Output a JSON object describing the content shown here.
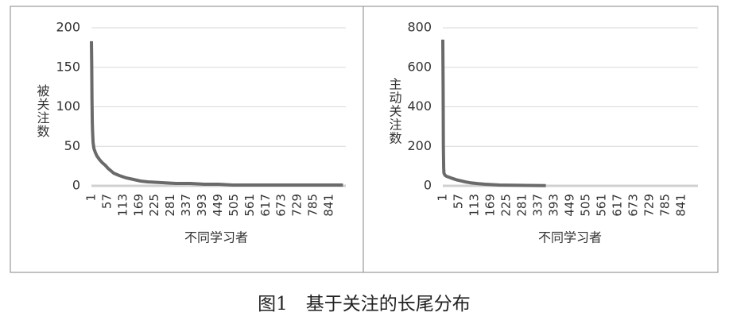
{
  "chart_data": [
    {
      "type": "line",
      "y_label": "被关注数",
      "x_label": "不同学习者",
      "color": "#6a6a6a",
      "grid": true,
      "x": [
        1,
        2,
        3,
        4,
        5,
        7,
        10,
        15,
        20,
        30,
        40,
        50,
        60,
        80,
        100,
        125,
        150,
        175,
        200,
        250,
        300,
        350,
        400,
        450,
        500,
        600,
        700,
        800,
        890
      ],
      "values": [
        183,
        150,
        110,
        80,
        70,
        55,
        47,
        42,
        38,
        33,
        29,
        26,
        22,
        16,
        13,
        10,
        8,
        6,
        5,
        4,
        3,
        3,
        2,
        2,
        1,
        1,
        1,
        1,
        1
      ],
      "xlim": [
        1,
        900
      ],
      "xticks": [
        1,
        57,
        113,
        169,
        225,
        281,
        337,
        393,
        449,
        505,
        561,
        617,
        673,
        729,
        785,
        841
      ],
      "ylim": [
        0,
        200
      ],
      "yticks": [
        0,
        50,
        100,
        150,
        200
      ]
    },
    {
      "type": "line",
      "y_label": "主动关注数",
      "x_label": "不同学习者",
      "color": "#6a6a6a",
      "grid": true,
      "x": [
        1,
        2,
        3,
        4,
        5,
        7,
        10,
        15,
        20,
        30,
        40,
        50,
        60,
        80,
        100,
        125,
        150,
        175,
        200,
        250,
        300,
        364
      ],
      "values": [
        740,
        500,
        200,
        90,
        65,
        58,
        52,
        48,
        45,
        40,
        35,
        30,
        27,
        20,
        15,
        11,
        8,
        6,
        4,
        3,
        2,
        1
      ],
      "xlim": [
        1,
        900
      ],
      "xticks": [
        1,
        57,
        113,
        169,
        225,
        281,
        337,
        393,
        449,
        505,
        561,
        617,
        673,
        729,
        785,
        841
      ],
      "ylim": [
        0,
        800
      ],
      "yticks": [
        0,
        200,
        400,
        600,
        800
      ]
    }
  ],
  "caption": "图1　基于关注的长尾分布"
}
